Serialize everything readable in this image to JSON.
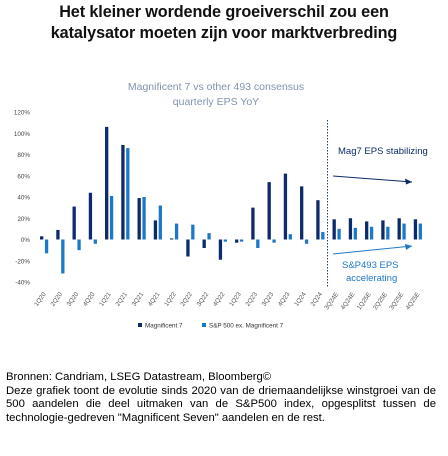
{
  "headline": {
    "line1": "Het kleiner wordende groeiverschil zou een",
    "line2": "katalysator moeten zijn voor marktverbreding"
  },
  "chart_data": {
    "type": "bar",
    "title": "Magnificent 7 vs other 493 consensus",
    "subtitle": "quarterly EPS YoY",
    "categories": [
      "1Q20",
      "2Q20",
      "3Q20",
      "4Q20",
      "1Q21",
      "2Q21",
      "3Q21",
      "4Q21",
      "1Q22",
      "2Q22",
      "3Q22",
      "4Q22",
      "1Q23",
      "2Q23",
      "3Q23",
      "4Q23",
      "1Q24",
      "2Q24",
      "3Q24E",
      "4Q24E",
      "1Q25E",
      "2Q25E",
      "3Q25E",
      "4Q25E"
    ],
    "series": [
      {
        "name": "Magnificent 7",
        "color": "#0d2a6b",
        "values": [
          3,
          9,
          31,
          44,
          106,
          89,
          39,
          18,
          1,
          -16,
          -8,
          -19,
          -3,
          30,
          54,
          62,
          50,
          37,
          19,
          20,
          17,
          18,
          20,
          19
        ]
      },
      {
        "name": "S&P 500 ex. Magnificent 7",
        "color": "#1e78c8",
        "values": [
          -13,
          -32,
          -10,
          -4,
          41,
          86,
          40,
          32,
          15,
          14,
          6,
          -2,
          -2,
          -8,
          -3,
          5,
          -4,
          7,
          10,
          11,
          12,
          12,
          15,
          15
        ]
      }
    ],
    "ylim": [
      -40,
      120
    ],
    "yticks": [
      "-40%",
      "-20%",
      "0%",
      "20%",
      "40%",
      "60%",
      "80%",
      "100%",
      "120%"
    ],
    "grid": false,
    "legend_position": "bottom",
    "estimate_start_index": 18,
    "annotations": [
      {
        "text": "Mag7 EPS stabilizing",
        "color": "#0d2a6b"
      },
      {
        "text1": "S&P493 EPS",
        "text2": "accelerating",
        "color": "#1e78c8"
      }
    ]
  },
  "footnote": {
    "source": "Bronnen: Candriam, LSEG Datastream, Bloomberg©",
    "description": "Deze grafiek toont de evolutie sinds 2020 van de driemaandelijkse winstgroei van de 500 aandelen die deel uitmaken van de S&P500 index, opgesplitst tussen de technologie-gedreven \"Magnificent Seven\" aandelen en de rest."
  }
}
